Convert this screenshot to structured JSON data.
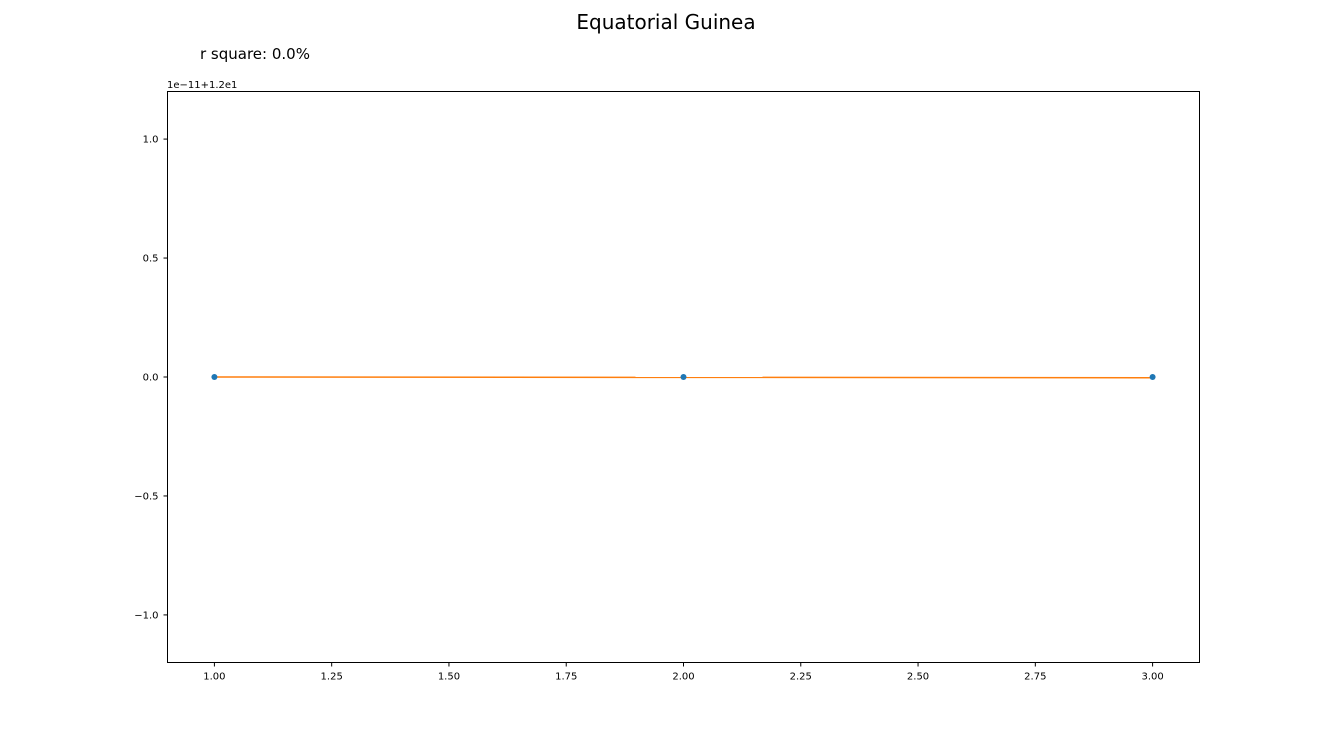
{
  "chart_data": {
    "type": "scatter",
    "title": "Equatorial Guinea",
    "subtitle": "r square: 0.0%",
    "xlabel": "",
    "ylabel": "",
    "offset_label": "1e−11+1.2e1",
    "xlim": [
      0.9,
      3.1
    ],
    "ylim": [
      -1.2,
      1.2
    ],
    "x_ticks": [
      1.0,
      1.25,
      1.5,
      1.75,
      2.0,
      2.25,
      2.5,
      2.75,
      3.0
    ],
    "x_tick_labels": [
      "1.00",
      "1.25",
      "1.50",
      "1.75",
      "2.00",
      "2.25",
      "2.50",
      "2.75",
      "3.00"
    ],
    "y_ticks": [
      -1.0,
      -0.5,
      0.0,
      0.5,
      1.0
    ],
    "y_tick_labels": [
      "−1.0",
      "−0.5",
      "0.0",
      "0.5",
      "1.0"
    ],
    "grid": false,
    "series": [
      {
        "kind": "scatter",
        "x": [
          1,
          2,
          3
        ],
        "y": [
          0.0,
          0.0,
          0.0
        ],
        "color": "#1f77b4"
      },
      {
        "kind": "line",
        "x": [
          1,
          3
        ],
        "y": [
          0.0,
          -0.003
        ],
        "color": "#ff7f0e"
      }
    ]
  }
}
